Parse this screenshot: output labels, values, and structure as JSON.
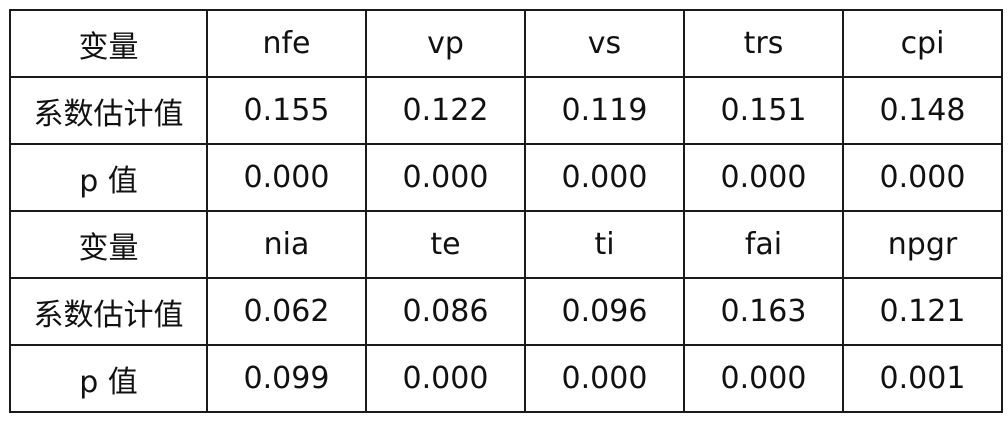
{
  "table": {
    "rows": [
      [
        "变量",
        "nfe",
        "vp",
        "vs",
        "trs",
        "cpi"
      ],
      [
        "系数估计值",
        "0.155",
        "0.122",
        "0.119",
        "0.151",
        "0.148"
      ],
      [
        "p 值",
        "0.000",
        "0.000",
        "0.000",
        "0.000",
        "0.000"
      ],
      [
        "变量",
        "nia",
        "te",
        "ti",
        "fai",
        "npgr"
      ],
      [
        "系数估计值",
        "0.062",
        "0.086",
        "0.096",
        "0.163",
        "0.121"
      ],
      [
        "p 值",
        "0.099",
        "0.000",
        "0.000",
        "0.000",
        "0.001"
      ]
    ]
  }
}
